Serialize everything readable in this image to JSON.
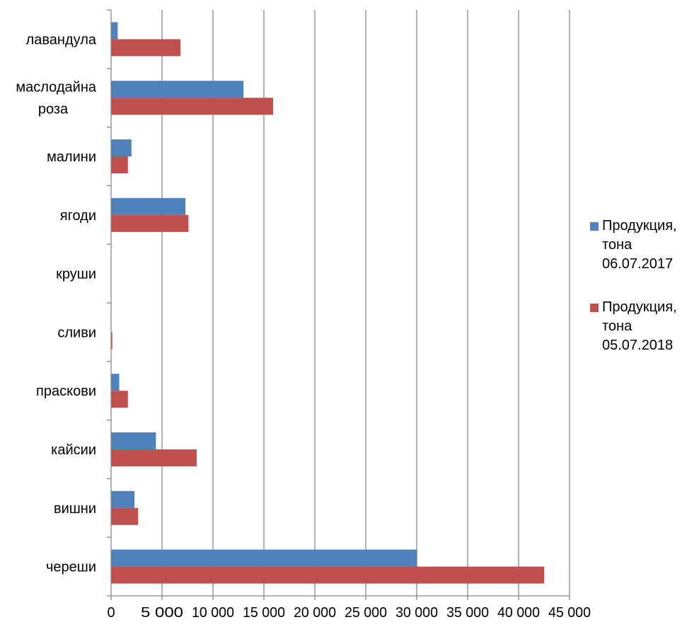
{
  "chart_data": {
    "type": "bar",
    "orientation": "horizontal",
    "categories": [
      "лавандула",
      "маслодайна роза",
      "малини",
      "ягоди",
      "круши",
      "сливи",
      "праскови",
      "кайсии",
      "вишни",
      "череши"
    ],
    "series": [
      {
        "name": "Продукция, тона 06.07.2017",
        "color": "#4f81bd",
        "values": [
          650,
          13000,
          2000,
          7300,
          0,
          0,
          800,
          4400,
          2300,
          30000
        ]
      },
      {
        "name": "Продукция, тона 05.07.2018",
        "color": "#c0504d",
        "values": [
          6800,
          15900,
          1650,
          7600,
          0,
          120,
          1650,
          8400,
          2650,
          42500
        ]
      }
    ],
    "xlim": [
      0,
      45000
    ],
    "x_ticks": [
      0,
      5000,
      10000,
      15000,
      20000,
      25000,
      30000,
      35000,
      40000,
      45000
    ],
    "x_tick_labels": [
      "0",
      "5 000",
      "10 000",
      "15 000",
      "20 000",
      "25 000",
      "30 000",
      "35 000",
      "40 000",
      "45 000"
    ],
    "grid": "vertical",
    "legend_position": "right",
    "colors": {
      "gridline": "#868686",
      "axis": "#868686"
    }
  },
  "legend": {
    "item_2017": "Продукция,\nтона\n06.07.2017",
    "item_2018": "Продукция,\nтона\n05.07.2018"
  }
}
